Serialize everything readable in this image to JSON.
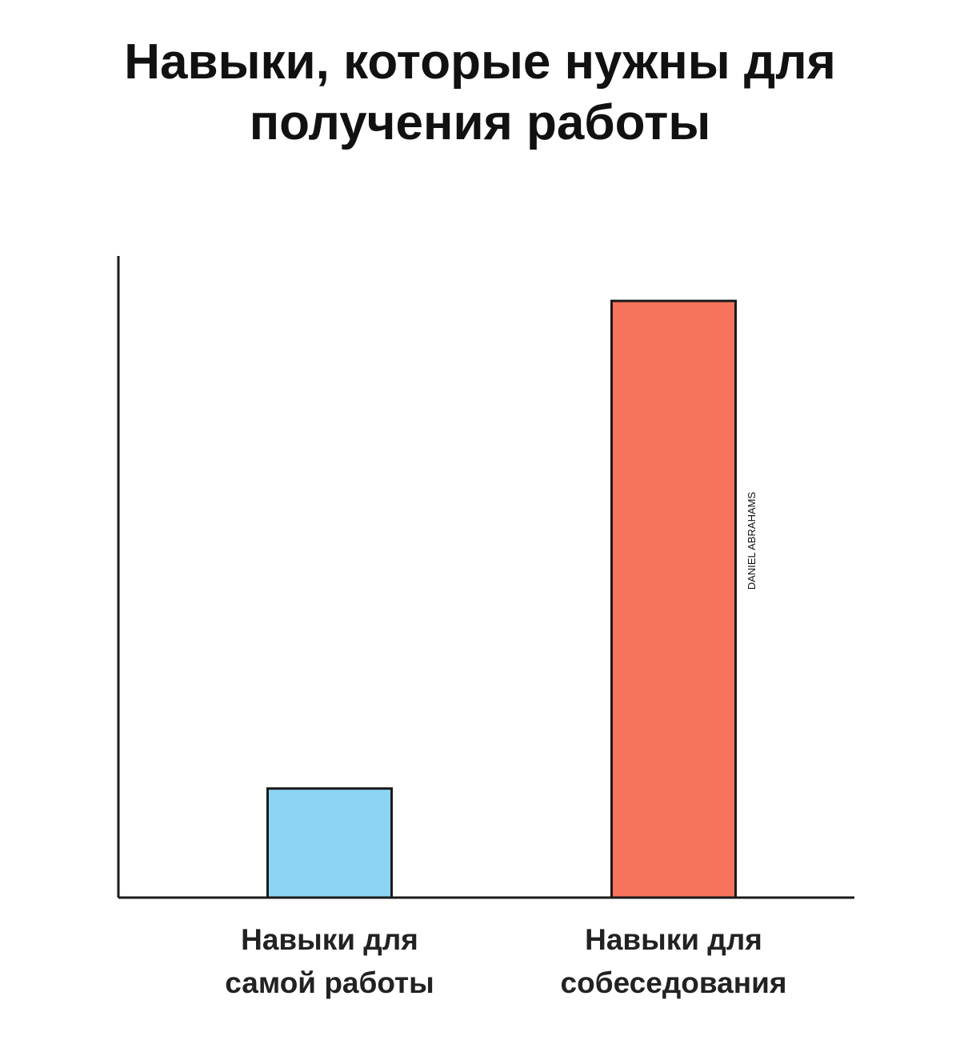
{
  "chart_data": {
    "type": "bar",
    "title": "Навыки, которые нужны для получения работы",
    "categories": [
      "Навыки для самой работы",
      "Навыки для собеседования"
    ],
    "values": [
      17,
      93
    ],
    "colors": [
      "#8dd4f4",
      "#f8735c"
    ],
    "ylim": [
      0,
      100
    ],
    "watermark": "DANIEL ABRAHAMS"
  }
}
